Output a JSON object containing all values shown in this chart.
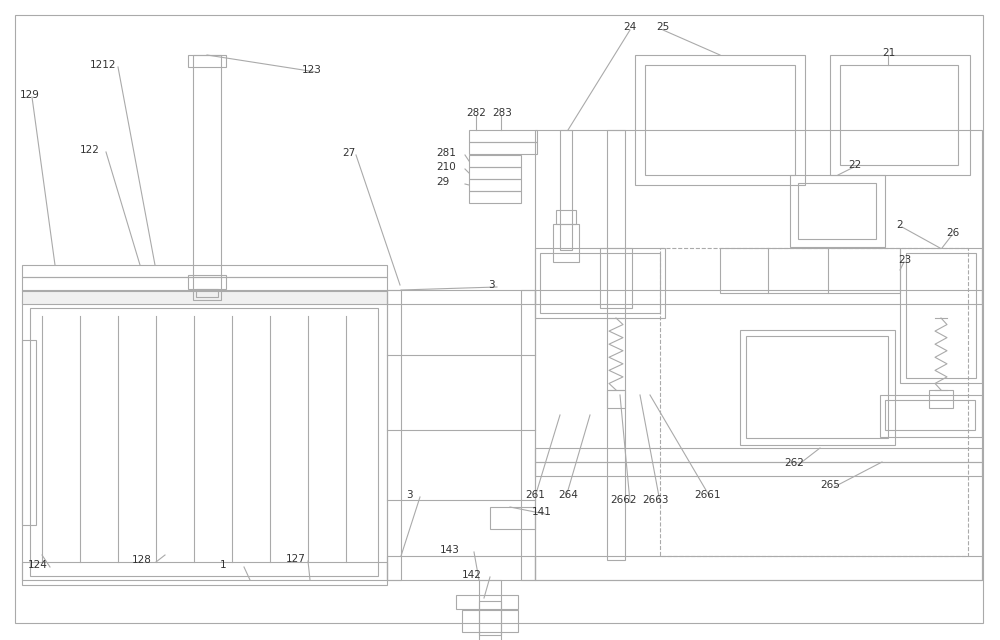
{
  "bg_color": "#ffffff",
  "lc": "#aaaaaa",
  "tc": "#333333",
  "lw": 0.8,
  "fs": 7.5
}
